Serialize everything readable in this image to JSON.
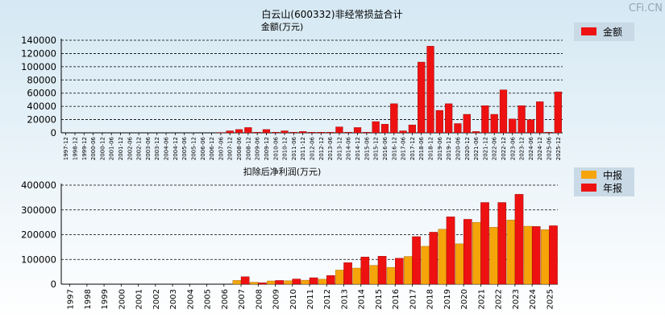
{
  "page": {
    "title": "白云山(600332)非经常损益合计",
    "watermark": "CFi.CN"
  },
  "colors": {
    "annual": "#ee1111",
    "semiannual": "#f5a40a",
    "bg_top": "#d5e8f3",
    "legend_bg": "#c9d9e6"
  },
  "chart_data": [
    {
      "type": "bar",
      "title": "金额(万元)",
      "legend": [
        {
          "name": "金额",
          "color": "#ee1111"
        }
      ],
      "legend_position": "top-right",
      "ylim": [
        0,
        140000
      ],
      "yticks": [
        0,
        20000,
        40000,
        60000,
        80000,
        100000,
        120000,
        140000
      ],
      "grid": true,
      "categories": [
        "1997-12",
        "1998-12",
        "1999-12",
        "2000-06",
        "2000-12",
        "2001-06",
        "2001-12",
        "2002-06",
        "2002-12",
        "2003-06",
        "2003-12",
        "2004-06",
        "2004-12",
        "2005-06",
        "2005-12",
        "2006-06",
        "2006-12",
        "2007-06",
        "2007-12",
        "2008-06",
        "2008-12",
        "2009-06",
        "2009-12",
        "2010-06",
        "2010-12",
        "2011-06",
        "2011-12",
        "2012-06",
        "2012-12",
        "2013-06",
        "2013-12",
        "2014-06",
        "2014-12",
        "2015-06",
        "2015-12",
        "2016-06",
        "2016-12",
        "2017-06",
        "2017-12",
        "2018-06",
        "2018-12",
        "2019-06",
        "2019-12",
        "2020-06",
        "2020-12",
        "2021-06",
        "2021-12",
        "2022-06",
        "2022-12",
        "2023-06",
        "2023-12",
        "2024-06",
        "2024-12",
        "2025-06",
        "2025-12"
      ],
      "values": [
        0,
        0,
        0,
        0,
        0,
        0,
        0,
        0,
        0,
        0,
        0,
        0,
        0,
        0,
        0,
        0,
        0,
        500,
        3000,
        5000,
        8000,
        1000,
        5000,
        1000,
        3000,
        1000,
        2000,
        1000,
        1000,
        1000,
        9000,
        1000,
        8000,
        1000,
        17000,
        13000,
        44000,
        3000,
        12000,
        107000,
        131000,
        34000,
        44000,
        14000,
        28000,
        2000,
        41000,
        28000,
        65000,
        21000,
        41000,
        20000,
        47000,
        1000,
        62000
      ]
    },
    {
      "type": "bar",
      "title": "扣除后净利润(万元)",
      "legend": [
        {
          "name": "中报",
          "color": "#f5a40a"
        },
        {
          "name": "年报",
          "color": "#ee1111"
        }
      ],
      "legend_position": "top-right",
      "ylim": [
        0,
        400000
      ],
      "yticks": [
        0,
        100000,
        200000,
        300000,
        400000
      ],
      "grid": true,
      "categories": [
        "1997",
        "1998",
        "1999",
        "2000",
        "2001",
        "2002",
        "2003",
        "2004",
        "2005",
        "2006",
        "2007",
        "2008",
        "2009",
        "2010",
        "2011",
        "2012",
        "2013",
        "2014",
        "2015",
        "2016",
        "2017",
        "2018",
        "2019",
        "2020",
        "2021",
        "2022",
        "2023",
        "2024",
        "2025"
      ],
      "series": [
        {
          "name": "中报",
          "values": [
            0,
            0,
            0,
            0,
            0,
            0,
            0,
            0,
            0,
            0,
            15000,
            8000,
            13000,
            14000,
            16000,
            20000,
            57000,
            65000,
            76000,
            68000,
            112000,
            153000,
            222000,
            163000,
            250000,
            230000,
            259000,
            234000,
            220000
          ]
        },
        {
          "name": "年报",
          "values": [
            0,
            0,
            0,
            0,
            0,
            0,
            0,
            0,
            0,
            0,
            30000,
            6000,
            15000,
            21000,
            26000,
            35000,
            87000,
            110000,
            113000,
            105000,
            192000,
            210000,
            272000,
            262000,
            330000,
            330000,
            363000,
            233000,
            236000
          ]
        }
      ]
    }
  ]
}
